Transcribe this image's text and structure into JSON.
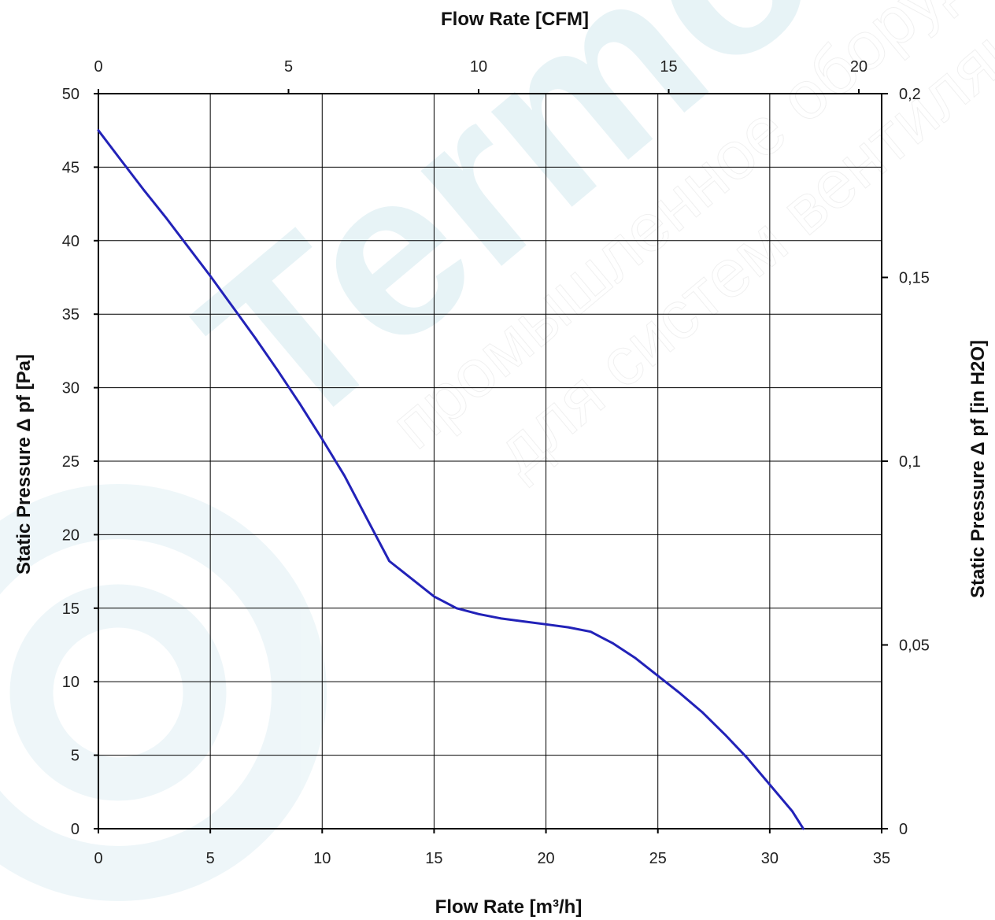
{
  "watermark": {
    "brand": "Termo",
    "line1": "промышленное оборуд",
    "line2": "для систем вентиляции",
    "color": "#1f8fb0"
  },
  "chart_data": {
    "type": "line",
    "line_color": "#2222b8",
    "grid": true,
    "xlabel": "Flow Rate [m³/h]",
    "x2label": "Flow Rate [CFM]",
    "ylabel": "Static Pressure Δ pf [Pa]",
    "y2label": "Static Pressure Δ pf [in H2O]",
    "xlim": [
      0,
      35
    ],
    "ylim": [
      0,
      50
    ],
    "x2lim": [
      0,
      20.6
    ],
    "y2lim": [
      0,
      0.2
    ],
    "x_ticks": [
      "0",
      "5",
      "10",
      "15",
      "20",
      "25",
      "30",
      "35"
    ],
    "y_ticks": [
      "0",
      "5",
      "10",
      "15",
      "20",
      "25",
      "30",
      "35",
      "40",
      "45",
      "50"
    ],
    "x2_ticks": [
      "0",
      "5",
      "10",
      "15",
      "20"
    ],
    "y2_ticks": [
      "0",
      "0,05",
      "0,1",
      "0,15",
      "0,2"
    ],
    "series": [
      {
        "x": [
          0,
          1,
          2,
          3,
          4,
          5,
          6,
          7,
          8,
          9,
          10,
          11,
          12,
          13,
          14,
          15,
          16,
          17,
          18,
          19,
          20,
          21,
          22,
          23,
          24,
          25,
          26,
          27,
          28,
          29,
          30,
          31,
          31.5
        ],
        "y": [
          47.5,
          45.5,
          43.5,
          41.6,
          39.6,
          37.6,
          35.5,
          33.4,
          31.2,
          28.9,
          26.5,
          24.0,
          21.1,
          18.2,
          17.0,
          15.8,
          15.0,
          14.6,
          14.3,
          14.1,
          13.9,
          13.7,
          13.4,
          12.6,
          11.6,
          10.4,
          9.2,
          7.9,
          6.4,
          4.8,
          3.0,
          1.2,
          0
        ]
      }
    ]
  }
}
